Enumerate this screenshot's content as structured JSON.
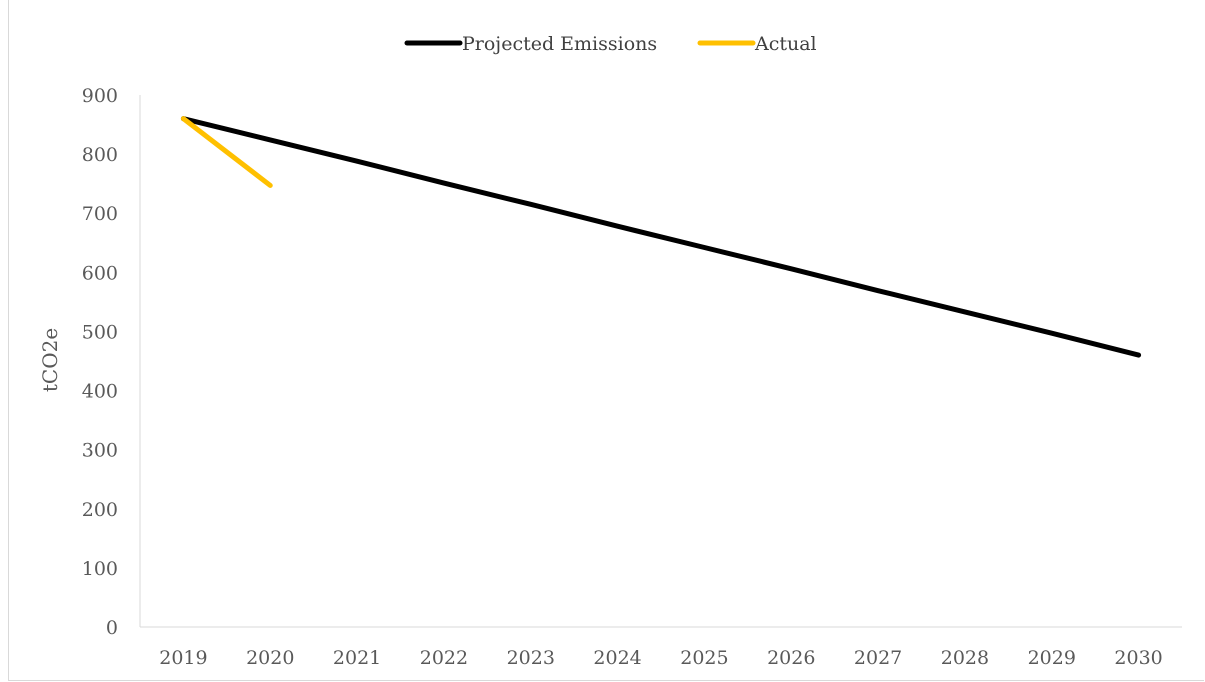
{
  "chart_data": {
    "type": "line",
    "title": "",
    "xlabel": "",
    "ylabel": "tCO2e",
    "categories": [
      "2019",
      "2020",
      "2021",
      "2022",
      "2023",
      "2024",
      "2025",
      "2026",
      "2027",
      "2028",
      "2029",
      "2030"
    ],
    "ylim": [
      0,
      900
    ],
    "yticks": [
      "0",
      "100",
      "200",
      "300",
      "400",
      "500",
      "600",
      "700",
      "800",
      "900"
    ],
    "grid": false,
    "legend_position": "top",
    "series": [
      {
        "name": "Projected Emissions",
        "color": "#000000",
        "values": [
          860,
          824,
          788,
          751,
          715,
          678,
          642,
          606,
          569,
          533,
          497,
          460
        ]
      },
      {
        "name": "Actual",
        "color": "#ffc000",
        "values": [
          860,
          747,
          null,
          null,
          null,
          null,
          null,
          null,
          null,
          null,
          null,
          null
        ]
      }
    ]
  }
}
